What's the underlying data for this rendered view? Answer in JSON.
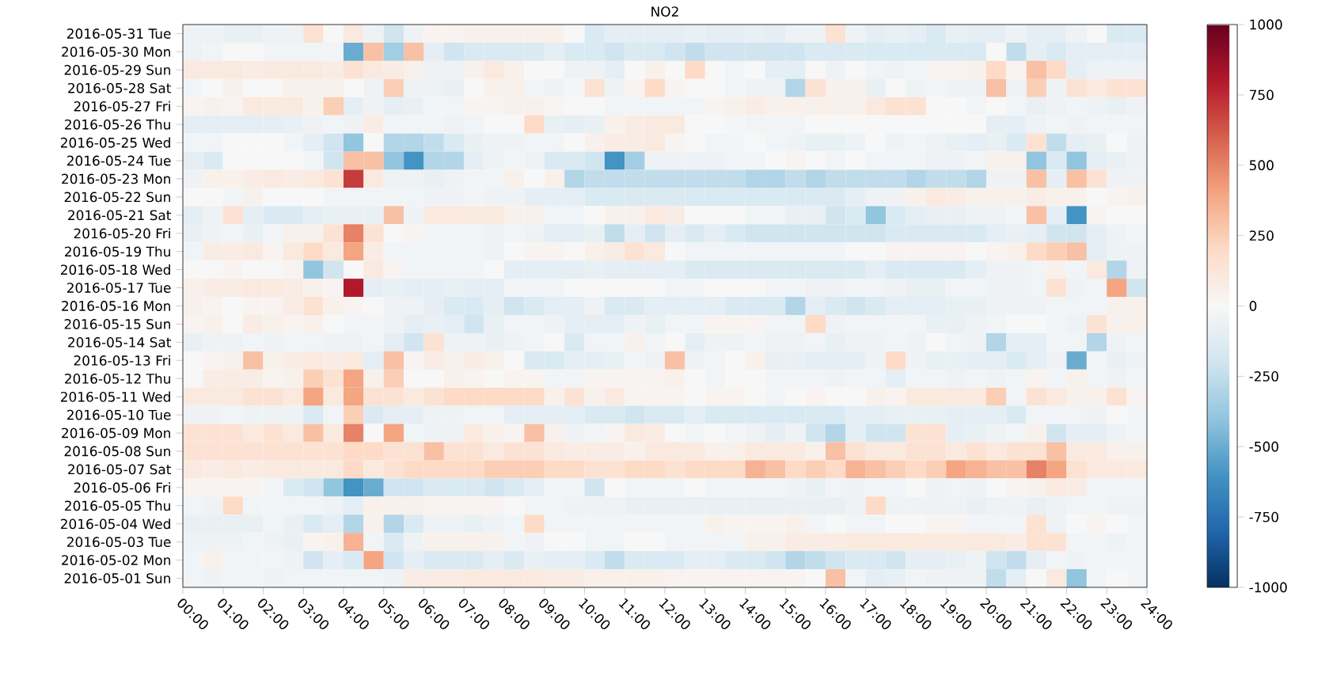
{
  "chart_data": {
    "type": "heatmap",
    "title": "NO2",
    "x": [
      0.25,
      0.75,
      1.25,
      1.75,
      2.25,
      2.75,
      3.25,
      3.75,
      4.25,
      4.75,
      5.25,
      5.75,
      6.25,
      6.75,
      7.25,
      7.75,
      8.25,
      8.75,
      9.25,
      9.75,
      10.25,
      10.75,
      11.25,
      11.75,
      12.25,
      12.75,
      13.25,
      13.75,
      14.25,
      14.75,
      15.25,
      15.75,
      16.25,
      16.75,
      17.25,
      17.75,
      18.25,
      18.75,
      19.25,
      19.75,
      20.25,
      20.75,
      21.25,
      21.75,
      22.25,
      22.75,
      23.25,
      23.75
    ],
    "y_categories": [
      "2016-05-31 Tue",
      "2016-05-30 Mon",
      "2016-05-29 Sun",
      "2016-05-28 Sat",
      "2016-05-27 Fri",
      "2016-05-26 Thu",
      "2016-05-25 Wed",
      "2016-05-24 Tue",
      "2016-05-23 Mon",
      "2016-05-22 Sun",
      "2016-05-21 Sat",
      "2016-05-20 Fri",
      "2016-05-19 Thu",
      "2016-05-18 Wed",
      "2016-05-17 Tue",
      "2016-05-16 Mon",
      "2016-05-15 Sun",
      "2016-05-14 Sat",
      "2016-05-13 Fri",
      "2016-05-12 Thu",
      "2016-05-11 Wed",
      "2016-05-10 Tue",
      "2016-05-09 Mon",
      "2016-05-08 Sun",
      "2016-05-07 Sat",
      "2016-05-06 Fri",
      "2016-05-05 Thu",
      "2016-05-04 Wed",
      "2016-05-03 Tue",
      "2016-05-02 Mon",
      "2016-05-01 Sun"
    ],
    "cells": [
      [
        -50,
        -50,
        -80,
        -80,
        -50,
        -50,
        150,
        0,
        100,
        -50,
        -200,
        -50,
        30,
        30,
        50,
        50,
        50,
        50,
        50,
        0,
        -150,
        -100,
        -100,
        -100,
        -100,
        -80,
        -100,
        -100,
        -80,
        -100,
        -50,
        -50,
        150,
        -50,
        -100,
        -80,
        -100,
        -150,
        -80,
        -100,
        -100,
        -50,
        -100,
        -100,
        -50,
        0,
        -150,
        -150
      ],
      [
        -50,
        -30,
        0,
        0,
        -30,
        -30,
        -30,
        -30,
        -500,
        300,
        -350,
        300,
        -100,
        -200,
        -150,
        -150,
        -150,
        -150,
        -100,
        -150,
        -150,
        -200,
        -150,
        -150,
        -200,
        -250,
        -200,
        -200,
        -200,
        -200,
        -200,
        -150,
        -150,
        -150,
        -150,
        -150,
        -150,
        -150,
        -150,
        -150,
        0,
        -250,
        -100,
        -150,
        -100,
        -100,
        -100,
        -100
      ],
      [
        100,
        100,
        100,
        80,
        100,
        100,
        100,
        80,
        150,
        100,
        80,
        50,
        -50,
        -50,
        50,
        100,
        50,
        0,
        0,
        -50,
        -50,
        -100,
        0,
        50,
        0,
        200,
        0,
        -30,
        0,
        -100,
        -100,
        0,
        -50,
        0,
        -30,
        -50,
        -30,
        30,
        30,
        50,
        200,
        30,
        300,
        200,
        -100,
        -50,
        -50,
        -50
      ],
      [
        -30,
        0,
        50,
        0,
        0,
        50,
        50,
        50,
        0,
        -50,
        250,
        -50,
        -50,
        -80,
        0,
        50,
        50,
        -30,
        -50,
        -20,
        150,
        -50,
        30,
        200,
        30,
        0,
        0,
        -30,
        -50,
        -50,
        -300,
        150,
        50,
        50,
        -80,
        0,
        -50,
        -30,
        -50,
        -50,
        300,
        -50,
        250,
        -50,
        150,
        100,
        150,
        150
      ],
      [
        30,
        50,
        30,
        100,
        100,
        100,
        50,
        250,
        -100,
        -50,
        -100,
        -80,
        -30,
        -30,
        30,
        30,
        50,
        50,
        20,
        0,
        0,
        -30,
        -30,
        -30,
        -30,
        -30,
        30,
        50,
        80,
        50,
        50,
        50,
        50,
        50,
        100,
        150,
        150,
        0,
        0,
        -30,
        0,
        -30,
        -80,
        -50,
        -30,
        -50,
        -80,
        -50
      ],
      [
        -100,
        -100,
        -100,
        -100,
        -100,
        -80,
        -50,
        -30,
        -50,
        80,
        -30,
        -30,
        -30,
        -50,
        -30,
        0,
        0,
        200,
        -80,
        -100,
        -80,
        50,
        80,
        100,
        100,
        0,
        0,
        -20,
        -30,
        -30,
        -30,
        0,
        0,
        0,
        0,
        0,
        0,
        0,
        0,
        0,
        -100,
        -100,
        -50,
        -30,
        -50,
        -30,
        -30,
        -30
      ],
      [
        -30,
        -30,
        0,
        0,
        0,
        -30,
        -100,
        -200,
        -400,
        0,
        -300,
        -300,
        -250,
        -150,
        -80,
        -50,
        -50,
        -30,
        -30,
        0,
        50,
        80,
        80,
        100,
        30,
        0,
        -30,
        -30,
        0,
        -30,
        -50,
        -80,
        -80,
        -50,
        0,
        -50,
        -30,
        -50,
        -80,
        -100,
        -80,
        -150,
        150,
        -250,
        -100,
        -80,
        0,
        -50
      ],
      [
        -100,
        -150,
        0,
        0,
        0,
        0,
        -30,
        -200,
        300,
        300,
        -400,
        -600,
        -300,
        -300,
        -100,
        -50,
        -30,
        -50,
        -150,
        -150,
        -200,
        -600,
        -350,
        -50,
        -50,
        -50,
        -50,
        -30,
        -30,
        0,
        30,
        0,
        -30,
        0,
        -30,
        -30,
        -30,
        -50,
        -50,
        -30,
        50,
        50,
        -400,
        -150,
        -400,
        -100,
        -80,
        -50
      ],
      [
        -50,
        50,
        50,
        80,
        100,
        80,
        100,
        150,
        700,
        100,
        -50,
        -50,
        -80,
        -50,
        -30,
        -30,
        50,
        0,
        50,
        -300,
        -250,
        -250,
        -250,
        -250,
        -250,
        -250,
        -250,
        -250,
        -300,
        -300,
        -250,
        -300,
        -250,
        -250,
        -250,
        -250,
        -300,
        -250,
        -250,
        -300,
        -50,
        -50,
        300,
        -100,
        300,
        150,
        -50,
        -50
      ],
      [
        0,
        0,
        -30,
        50,
        0,
        0,
        0,
        -30,
        -30,
        -30,
        -30,
        -30,
        -50,
        -50,
        -30,
        -50,
        -50,
        -100,
        -100,
        -100,
        -150,
        -150,
        -150,
        -150,
        -150,
        -150,
        -150,
        -150,
        -150,
        -150,
        -150,
        -150,
        -150,
        -100,
        -50,
        -50,
        50,
        100,
        80,
        50,
        50,
        50,
        80,
        50,
        50,
        0,
        30,
        50
      ],
      [
        -100,
        -50,
        150,
        -100,
        -150,
        -150,
        -100,
        -80,
        -80,
        -80,
        300,
        -50,
        100,
        100,
        100,
        100,
        50,
        50,
        -30,
        -30,
        0,
        50,
        50,
        100,
        80,
        0,
        0,
        0,
        -30,
        -30,
        -80,
        -80,
        -200,
        -150,
        -400,
        -150,
        -100,
        -80,
        -80,
        -50,
        -50,
        -30,
        300,
        -100,
        -600,
        30,
        0,
        0
      ],
      [
        -80,
        -50,
        -30,
        -80,
        -30,
        50,
        50,
        150,
        500,
        150,
        0,
        30,
        -30,
        -30,
        -30,
        -50,
        -30,
        -50,
        -100,
        -100,
        -80,
        -250,
        -100,
        -200,
        -100,
        -150,
        -100,
        -150,
        -200,
        -200,
        -200,
        -200,
        -200,
        -200,
        -200,
        -150,
        -150,
        -150,
        -150,
        -150,
        -100,
        -80,
        -100,
        -200,
        -200,
        -100,
        -50,
        -30
      ],
      [
        -30,
        80,
        80,
        100,
        30,
        100,
        200,
        100,
        400,
        80,
        -30,
        -30,
        -30,
        -30,
        -30,
        -50,
        0,
        30,
        30,
        0,
        50,
        80,
        150,
        100,
        0,
        -30,
        -30,
        -30,
        -30,
        -30,
        -30,
        -30,
        -30,
        0,
        0,
        30,
        30,
        30,
        30,
        0,
        30,
        50,
        200,
        250,
        300,
        -100,
        -50,
        -50
      ],
      [
        0,
        0,
        30,
        0,
        0,
        30,
        -400,
        -200,
        0,
        100,
        30,
        -30,
        -30,
        -30,
        -30,
        0,
        -100,
        -100,
        -100,
        -100,
        -80,
        -100,
        -100,
        -100,
        -100,
        -150,
        -150,
        -150,
        -150,
        -150,
        -150,
        -150,
        -150,
        -150,
        -100,
        -150,
        -150,
        -150,
        -150,
        -100,
        -50,
        -50,
        -30,
        50,
        -30,
        100,
        -300,
        -50
      ],
      [
        50,
        80,
        80,
        100,
        100,
        80,
        50,
        30,
        800,
        -100,
        -80,
        -100,
        -100,
        -80,
        -100,
        -100,
        -30,
        -30,
        -30,
        0,
        0,
        0,
        0,
        0,
        -30,
        -30,
        0,
        0,
        0,
        -30,
        -30,
        -50,
        -50,
        -30,
        -30,
        -50,
        -80,
        -80,
        -30,
        -30,
        -50,
        -50,
        -30,
        150,
        -50,
        -30,
        400,
        -200
      ],
      [
        50,
        30,
        0,
        30,
        30,
        80,
        150,
        50,
        30,
        0,
        -50,
        -50,
        -100,
        -150,
        -150,
        -100,
        -200,
        -150,
        -100,
        -100,
        -50,
        -150,
        -150,
        -100,
        -100,
        -100,
        -100,
        -150,
        -150,
        -150,
        -300,
        -100,
        -150,
        -200,
        -150,
        -100,
        -100,
        -100,
        -80,
        -80,
        -50,
        -50,
        -50,
        -30,
        -30,
        -30,
        50,
        50
      ],
      [
        30,
        50,
        0,
        80,
        50,
        30,
        50,
        0,
        -30,
        -30,
        -50,
        -100,
        -80,
        -100,
        -200,
        -80,
        -30,
        -30,
        -50,
        -100,
        -100,
        -100,
        -50,
        -80,
        -30,
        -30,
        30,
        30,
        30,
        -30,
        -30,
        200,
        -50,
        -30,
        -30,
        -30,
        -30,
        -80,
        -80,
        -50,
        -30,
        0,
        0,
        -30,
        -50,
        150,
        50,
        50
      ],
      [
        -80,
        -50,
        -50,
        -30,
        -50,
        -30,
        -30,
        -50,
        -50,
        -30,
        -100,
        -200,
        150,
        -50,
        -50,
        -80,
        -50,
        -30,
        0,
        -150,
        -30,
        -30,
        50,
        -30,
        0,
        -100,
        -50,
        -50,
        -30,
        -50,
        -50,
        -30,
        -80,
        -50,
        -50,
        -30,
        -50,
        0,
        -30,
        -50,
        -300,
        -100,
        -100,
        -30,
        -30,
        -300,
        -50,
        -30
      ],
      [
        0,
        30,
        50,
        300,
        50,
        80,
        100,
        80,
        100,
        -100,
        300,
        30,
        80,
        50,
        80,
        50,
        0,
        -150,
        -150,
        -100,
        -100,
        -80,
        -30,
        -50,
        300,
        -50,
        -30,
        0,
        50,
        -80,
        -80,
        -100,
        -100,
        -100,
        -50,
        200,
        -50,
        -80,
        -80,
        -100,
        -100,
        -150,
        -100,
        -50,
        -500,
        -30,
        -80,
        -50
      ],
      [
        0,
        80,
        80,
        80,
        30,
        50,
        250,
        150,
        400,
        50,
        250,
        0,
        0,
        50,
        30,
        0,
        30,
        30,
        -30,
        -30,
        30,
        30,
        30,
        30,
        50,
        0,
        -30,
        0,
        0,
        -30,
        -30,
        -30,
        -50,
        -30,
        -30,
        -100,
        -30,
        -30,
        -50,
        -30,
        -50,
        -30,
        30,
        -30,
        50,
        -30,
        -50,
        -30
      ],
      [
        100,
        100,
        100,
        150,
        150,
        100,
        400,
        100,
        400,
        150,
        150,
        100,
        150,
        200,
        200,
        200,
        200,
        200,
        50,
        150,
        50,
        100,
        30,
        30,
        30,
        0,
        30,
        30,
        0,
        -30,
        0,
        30,
        0,
        0,
        50,
        30,
        100,
        100,
        100,
        100,
        250,
        -30,
        150,
        100,
        50,
        50,
        150,
        30
      ],
      [
        -50,
        -50,
        -30,
        -50,
        -50,
        -50,
        -150,
        -30,
        250,
        -150,
        -100,
        -100,
        -50,
        -50,
        -30,
        -30,
        -100,
        -100,
        -100,
        -100,
        -150,
        -150,
        -200,
        -150,
        -150,
        -100,
        -150,
        -150,
        -150,
        -150,
        -150,
        -150,
        -150,
        -100,
        -100,
        -80,
        -80,
        -80,
        -100,
        -100,
        -100,
        -150,
        -30,
        -30,
        -30,
        -50,
        0,
        -30
      ],
      [
        150,
        150,
        150,
        100,
        150,
        100,
        300,
        100,
        500,
        0,
        400,
        -30,
        -50,
        -50,
        100,
        50,
        30,
        300,
        50,
        -50,
        -30,
        30,
        100,
        80,
        0,
        -30,
        0,
        -30,
        -50,
        -100,
        -50,
        -200,
        -300,
        -100,
        -200,
        -200,
        150,
        150,
        -100,
        -80,
        -50,
        -30,
        50,
        -200,
        -100,
        -100,
        -50,
        -30
      ],
      [
        150,
        150,
        150,
        150,
        150,
        150,
        150,
        150,
        200,
        200,
        150,
        150,
        300,
        150,
        150,
        100,
        150,
        150,
        100,
        80,
        80,
        80,
        50,
        100,
        100,
        100,
        50,
        50,
        100,
        100,
        100,
        50,
        300,
        150,
        100,
        100,
        150,
        150,
        100,
        150,
        100,
        150,
        150,
        300,
        100,
        100,
        50,
        50
      ],
      [
        100,
        80,
        100,
        80,
        100,
        100,
        100,
        100,
        200,
        100,
        150,
        200,
        200,
        200,
        200,
        250,
        250,
        250,
        200,
        200,
        150,
        150,
        200,
        200,
        150,
        200,
        200,
        200,
        350,
        300,
        200,
        250,
        200,
        350,
        300,
        250,
        200,
        250,
        400,
        350,
        300,
        300,
        500,
        400,
        150,
        100,
        100,
        100
      ],
      [
        30,
        30,
        30,
        30,
        -30,
        -150,
        -200,
        -400,
        -600,
        -500,
        -200,
        -200,
        -150,
        -150,
        -150,
        -200,
        -150,
        -100,
        -30,
        -30,
        -200,
        0,
        -30,
        -30,
        -30,
        0,
        -30,
        -30,
        -30,
        -30,
        -50,
        -80,
        -30,
        -50,
        -30,
        -30,
        0,
        -50,
        -30,
        -50,
        0,
        30,
        50,
        100,
        80,
        -30,
        -30,
        -30
      ],
      [
        -30,
        -50,
        200,
        -30,
        -30,
        -30,
        -30,
        -50,
        -100,
        50,
        50,
        50,
        30,
        30,
        30,
        30,
        0,
        -30,
        -30,
        -50,
        -50,
        -50,
        -80,
        -80,
        -80,
        -80,
        -80,
        -80,
        -80,
        -80,
        -80,
        -80,
        -80,
        -50,
        200,
        -50,
        -50,
        -50,
        -50,
        -80,
        -50,
        -50,
        -80,
        -50,
        -30,
        -30,
        -50,
        -50
      ],
      [
        -80,
        -80,
        -80,
        -80,
        -30,
        -80,
        -150,
        -100,
        -300,
        50,
        -300,
        -150,
        -50,
        -50,
        -80,
        -50,
        -30,
        200,
        -30,
        -30,
        -30,
        -30,
        -30,
        -30,
        -30,
        -30,
        50,
        30,
        30,
        30,
        50,
        -30,
        0,
        -30,
        -30,
        0,
        0,
        30,
        30,
        -30,
        -30,
        -30,
        150,
        -50,
        0,
        30,
        0,
        -30
      ],
      [
        -50,
        -50,
        -50,
        -30,
        -50,
        -80,
        30,
        50,
        350,
        -30,
        -150,
        -50,
        50,
        50,
        50,
        50,
        -30,
        -50,
        0,
        0,
        -30,
        -30,
        0,
        0,
        -30,
        -30,
        -30,
        -30,
        50,
        50,
        80,
        80,
        80,
        100,
        100,
        100,
        100,
        100,
        100,
        100,
        100,
        80,
        150,
        150,
        -30,
        -30,
        -50,
        -30
      ],
      [
        -30,
        50,
        -30,
        -30,
        -30,
        -50,
        -200,
        -100,
        -150,
        400,
        -200,
        -100,
        -150,
        -150,
        -150,
        -100,
        -150,
        -80,
        -100,
        -100,
        -150,
        -250,
        -150,
        -150,
        -150,
        -100,
        -100,
        -150,
        -150,
        -200,
        -300,
        -250,
        -200,
        -150,
        -150,
        -200,
        -100,
        -100,
        -80,
        -50,
        -200,
        -250,
        -100,
        -30,
        -50,
        -30,
        -30,
        -30
      ],
      [
        -30,
        -50,
        -30,
        -30,
        -50,
        -30,
        -30,
        -30,
        -30,
        -30,
        -50,
        80,
        80,
        80,
        100,
        100,
        100,
        100,
        80,
        80,
        50,
        50,
        50,
        50,
        30,
        30,
        30,
        30,
        30,
        30,
        30,
        0,
        300,
        -30,
        -100,
        -80,
        -30,
        -50,
        -50,
        -50,
        -250,
        -100,
        0,
        100,
        -400,
        -30,
        0,
        -30
      ]
    ],
    "xlim": [
      0,
      24
    ],
    "xticks": [
      {
        "value": 0,
        "label": "00:00"
      },
      {
        "value": 1,
        "label": "01:00"
      },
      {
        "value": 2,
        "label": "02:00"
      },
      {
        "value": 3,
        "label": "03:00"
      },
      {
        "value": 4,
        "label": "04:00"
      },
      {
        "value": 5,
        "label": "05:00"
      },
      {
        "value": 6,
        "label": "06:00"
      },
      {
        "value": 7,
        "label": "07:00"
      },
      {
        "value": 8,
        "label": "08:00"
      },
      {
        "value": 9,
        "label": "09:00"
      },
      {
        "value": 10,
        "label": "10:00"
      },
      {
        "value": 11,
        "label": "11:00"
      },
      {
        "value": 12,
        "label": "12:00"
      },
      {
        "value": 13,
        "label": "13:00"
      },
      {
        "value": 14,
        "label": "14:00"
      },
      {
        "value": 15,
        "label": "15:00"
      },
      {
        "value": 16,
        "label": "16:00"
      },
      {
        "value": 17,
        "label": "17:00"
      },
      {
        "value": 18,
        "label": "18:00"
      },
      {
        "value": 19,
        "label": "19:00"
      },
      {
        "value": 20,
        "label": "20:00"
      },
      {
        "value": 21,
        "label": "21:00"
      },
      {
        "value": 22,
        "label": "22:00"
      },
      {
        "value": 23,
        "label": "23:00"
      },
      {
        "value": 24,
        "label": "24:00"
      }
    ],
    "clim": [
      -1000,
      1000
    ],
    "cticks": [
      -1000,
      -750,
      -500,
      -250,
      0,
      250,
      500,
      750,
      1000
    ]
  }
}
